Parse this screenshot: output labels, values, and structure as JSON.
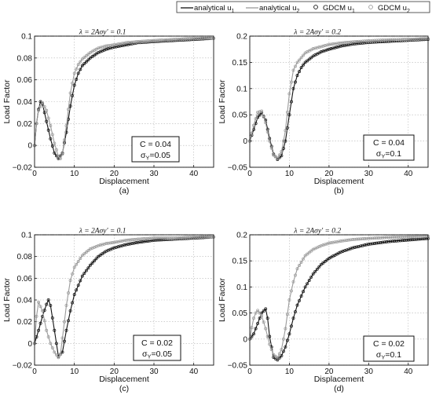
{
  "legend": {
    "placement": "top",
    "entries": [
      {
        "label_main": "analytical u",
        "label_sub": "1",
        "style": "solid",
        "color": "#111111"
      },
      {
        "label_main": "analytical u",
        "label_sub": "2",
        "style": "solid",
        "color": "#9a9a9a"
      },
      {
        "label_main": "GDCM u",
        "label_sub": "1",
        "style": "circle",
        "color": "#111111"
      },
      {
        "label_main": "GDCM u",
        "label_sub": "2",
        "style": "circle",
        "color": "#9a9a9a"
      }
    ]
  },
  "colors": {
    "u1": "#111111",
    "u2": "#9a9a9a",
    "asymptote": "#111111"
  },
  "chart_data": [
    {
      "type": "line",
      "panel_label": "(a)",
      "xlabel": "Displacement",
      "ylabel": "Load Factor",
      "xlim": [
        0,
        45
      ],
      "ylim": [
        -0.02,
        0.1
      ],
      "xticks": [
        "0",
        "10",
        "20",
        "30",
        "40"
      ],
      "yticks": [
        "−0.02",
        "0",
        "0.02",
        "0.04",
        "0.06",
        "0.08",
        "0.1"
      ],
      "grid": true,
      "asymptote": {
        "y": 0.1,
        "label": "λ = 2Aσy' = 0.1"
      },
      "annotation": {
        "line1": "C = 0.04",
        "line2_main": "σ",
        "line2_sub": "Y",
        "line2_rest": "=0.05"
      },
      "series": [
        {
          "name": "analytical u1",
          "x": [
            0,
            0.5,
            1,
            1.5,
            2,
            3,
            4,
            5,
            6,
            7,
            8,
            9,
            10,
            11,
            12,
            14,
            16,
            18,
            20,
            23,
            26,
            30,
            35,
            40,
            45
          ],
          "y": [
            0,
            0.02,
            0.033,
            0.04,
            0.038,
            0.022,
            0.006,
            -0.007,
            -0.012,
            -0.007,
            0.012,
            0.036,
            0.055,
            0.066,
            0.073,
            0.08,
            0.085,
            0.088,
            0.09,
            0.092,
            0.094,
            0.095,
            0.096,
            0.097,
            0.098
          ]
        },
        {
          "name": "analytical u2",
          "x": [
            0,
            0.5,
            1,
            2,
            3,
            4,
            5,
            6,
            6.5,
            7,
            8,
            9,
            10,
            11,
            12,
            14,
            16,
            18,
            20,
            23,
            26,
            30,
            35,
            40,
            45
          ],
          "y": [
            0,
            0.02,
            0.032,
            0.039,
            0.032,
            0.018,
            0.002,
            -0.01,
            -0.012,
            -0.008,
            0.018,
            0.048,
            0.066,
            0.074,
            0.079,
            0.085,
            0.089,
            0.091,
            0.092,
            0.094,
            0.095,
            0.096,
            0.097,
            0.098,
            0.098
          ]
        }
      ]
    },
    {
      "type": "line",
      "panel_label": "(b)",
      "xlabel": "Displacement",
      "ylabel": "Load Factor",
      "xlim": [
        0,
        45
      ],
      "ylim": [
        -0.05,
        0.2
      ],
      "xticks": [
        "0",
        "10",
        "20",
        "30",
        "40"
      ],
      "yticks": [
        "−0.05",
        "0",
        "0.05",
        "0.1",
        "0.15",
        "0.2"
      ],
      "grid": true,
      "asymptote": {
        "y": 0.2,
        "label": "λ = 2Aσy' = 0.2"
      },
      "annotation": {
        "line1": "C = 0.04",
        "line2_main": "σ",
        "line2_sub": "Y",
        "line2_rest": "=0.1"
      },
      "series": [
        {
          "name": "analytical u1",
          "x": [
            0,
            1,
            2,
            3,
            4,
            5,
            6,
            7,
            8,
            9,
            10,
            11,
            12,
            13,
            14,
            16,
            18,
            20,
            23,
            26,
            30,
            35,
            40,
            45
          ],
          "y": [
            0,
            0.022,
            0.045,
            0.054,
            0.04,
            0.005,
            -0.025,
            -0.035,
            -0.028,
            0.0,
            0.05,
            0.1,
            0.125,
            0.14,
            0.15,
            0.162,
            0.17,
            0.175,
            0.181,
            0.185,
            0.188,
            0.19,
            0.192,
            0.194
          ]
        },
        {
          "name": "analytical u2",
          "x": [
            0,
            1,
            2,
            3,
            4,
            5,
            6,
            7,
            8,
            9,
            10,
            11,
            12,
            14,
            16,
            18,
            20,
            23,
            26,
            30,
            35,
            40,
            45
          ],
          "y": [
            0,
            0.03,
            0.055,
            0.057,
            0.035,
            0.0,
            -0.027,
            -0.033,
            -0.02,
            0.02,
            0.09,
            0.135,
            0.15,
            0.168,
            0.176,
            0.18,
            0.184,
            0.187,
            0.189,
            0.191,
            0.193,
            0.194,
            0.195
          ]
        }
      ]
    },
    {
      "type": "line",
      "panel_label": "(c)",
      "xlabel": "Displacement",
      "ylabel": "Load Factor",
      "xlim": [
        0,
        45
      ],
      "ylim": [
        -0.02,
        0.1
      ],
      "xticks": [
        "0",
        "10",
        "20",
        "30",
        "40"
      ],
      "yticks": [
        "−0.02",
        "0",
        "0.02",
        "0.04",
        "0.06",
        "0.08",
        "0.1"
      ],
      "grid": true,
      "asymptote": {
        "y": 0.1,
        "label": "λ = 2Aσy' = 0.1"
      },
      "annotation": {
        "line1": "C = 0.02",
        "line2_main": "σ",
        "line2_sub": "Y",
        "line2_rest": "=0.05"
      },
      "series": [
        {
          "name": "analytical u1",
          "x": [
            0,
            1,
            2,
            3,
            3.5,
            4,
            5,
            6,
            7,
            8,
            9,
            10,
            12,
            14,
            16,
            18,
            20,
            23,
            26,
            30,
            35,
            40,
            45
          ],
          "y": [
            0,
            0.012,
            0.025,
            0.036,
            0.04,
            0.035,
            0.012,
            -0.012,
            -0.008,
            0.012,
            0.03,
            0.045,
            0.062,
            0.072,
            0.08,
            0.085,
            0.088,
            0.091,
            0.093,
            0.095,
            0.096,
            0.097,
            0.098
          ]
        },
        {
          "name": "analytical u2",
          "x": [
            0,
            0.5,
            1,
            2,
            3,
            4,
            5,
            6,
            6.5,
            7,
            8,
            9,
            10,
            12,
            14,
            16,
            18,
            20,
            23,
            26,
            30,
            35,
            40,
            45
          ],
          "y": [
            0,
            0.025,
            0.038,
            0.03,
            0.012,
            0.0,
            -0.008,
            -0.013,
            -0.01,
            0.005,
            0.035,
            0.058,
            0.07,
            0.081,
            0.087,
            0.09,
            0.092,
            0.093,
            0.095,
            0.096,
            0.097,
            0.097,
            0.098,
            0.098
          ]
        }
      ]
    },
    {
      "type": "line",
      "panel_label": "(d)",
      "xlabel": "Displacement",
      "ylabel": "Load Factor",
      "xlim": [
        0,
        45
      ],
      "ylim": [
        -0.05,
        0.2
      ],
      "xticks": [
        "0",
        "10",
        "20",
        "30",
        "40"
      ],
      "yticks": [
        "−0.05",
        "0",
        "0.05",
        "0.1",
        "0.15",
        "0.2"
      ],
      "grid": true,
      "asymptote": {
        "y": 0.2,
        "label": "λ = 2Aσy' = 0.2"
      },
      "annotation": {
        "line1": "C = 0.02",
        "line2_main": "σ",
        "line2_sub": "Y",
        "line2_rest": "=0.1"
      },
      "series": [
        {
          "name": "analytical u1",
          "x": [
            0,
            1,
            2,
            3,
            4,
            4.5,
            5,
            6,
            7,
            8,
            9,
            10,
            11,
            12,
            14,
            16,
            18,
            20,
            23,
            26,
            30,
            35,
            40,
            45
          ],
          "y": [
            0,
            0.01,
            0.03,
            0.05,
            0.058,
            0.04,
            0.005,
            -0.035,
            -0.04,
            -0.032,
            -0.015,
            0.01,
            0.04,
            0.065,
            0.1,
            0.125,
            0.143,
            0.155,
            0.167,
            0.175,
            0.182,
            0.187,
            0.19,
            0.193
          ]
        },
        {
          "name": "analytical u2",
          "x": [
            0,
            0.5,
            1,
            1.5,
            2,
            3,
            4,
            5,
            6,
            7,
            8,
            9,
            10,
            11,
            12,
            14,
            16,
            18,
            20,
            23,
            26,
            30,
            35,
            40,
            45
          ],
          "y": [
            0,
            0.022,
            0.04,
            0.05,
            0.055,
            0.045,
            0.02,
            -0.01,
            -0.03,
            -0.036,
            -0.02,
            0.02,
            0.075,
            0.11,
            0.135,
            0.16,
            0.172,
            0.179,
            0.184,
            0.188,
            0.191,
            0.193,
            0.195,
            0.196,
            0.197
          ]
        }
      ]
    }
  ]
}
